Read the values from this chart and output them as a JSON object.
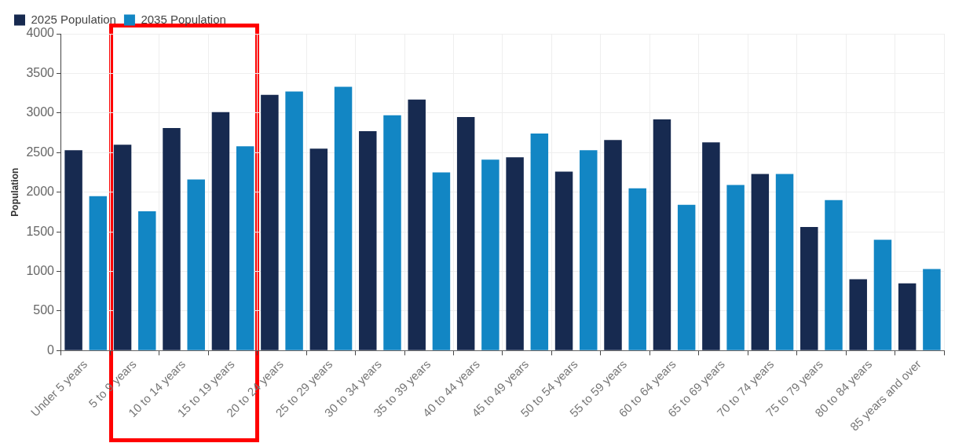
{
  "chart_data": {
    "type": "bar",
    "ylabel": "Population",
    "categories": [
      "Under 5 years",
      "5 to 9 years",
      "10 to 14 years",
      "15 to 19 years",
      "20 to 24 years",
      "25 to 29 years",
      "30 to 34 years",
      "35 to 39 years",
      "40 to 44 years",
      "45 to 49 years",
      "50 to 54 years",
      "55 to 59 years",
      "60 to 64 years",
      "65 to 69 years",
      "70 to 74 years",
      "75 to 79 years",
      "80 to 84 years",
      "85 years and over"
    ],
    "series": [
      {
        "name": "2025 Population",
        "color": "#172a50",
        "values": [
          2530,
          2600,
          2810,
          3010,
          3230,
          2550,
          2770,
          3170,
          2950,
          2440,
          2260,
          2660,
          2920,
          2630,
          2230,
          1560,
          900,
          850
        ]
      },
      {
        "name": "2035 Population",
        "color": "#1286c4",
        "values": [
          1950,
          1760,
          2160,
          2580,
          3270,
          3330,
          2970,
          2250,
          2410,
          2740,
          2530,
          2050,
          1840,
          2090,
          2230,
          1900,
          1400,
          1030
        ]
      }
    ],
    "ylim": [
      0,
      4000
    ],
    "yticks": [
      0,
      500,
      1000,
      1500,
      2000,
      2500,
      3000,
      3500,
      4000
    ],
    "grid": true,
    "legend": "top left"
  }
}
